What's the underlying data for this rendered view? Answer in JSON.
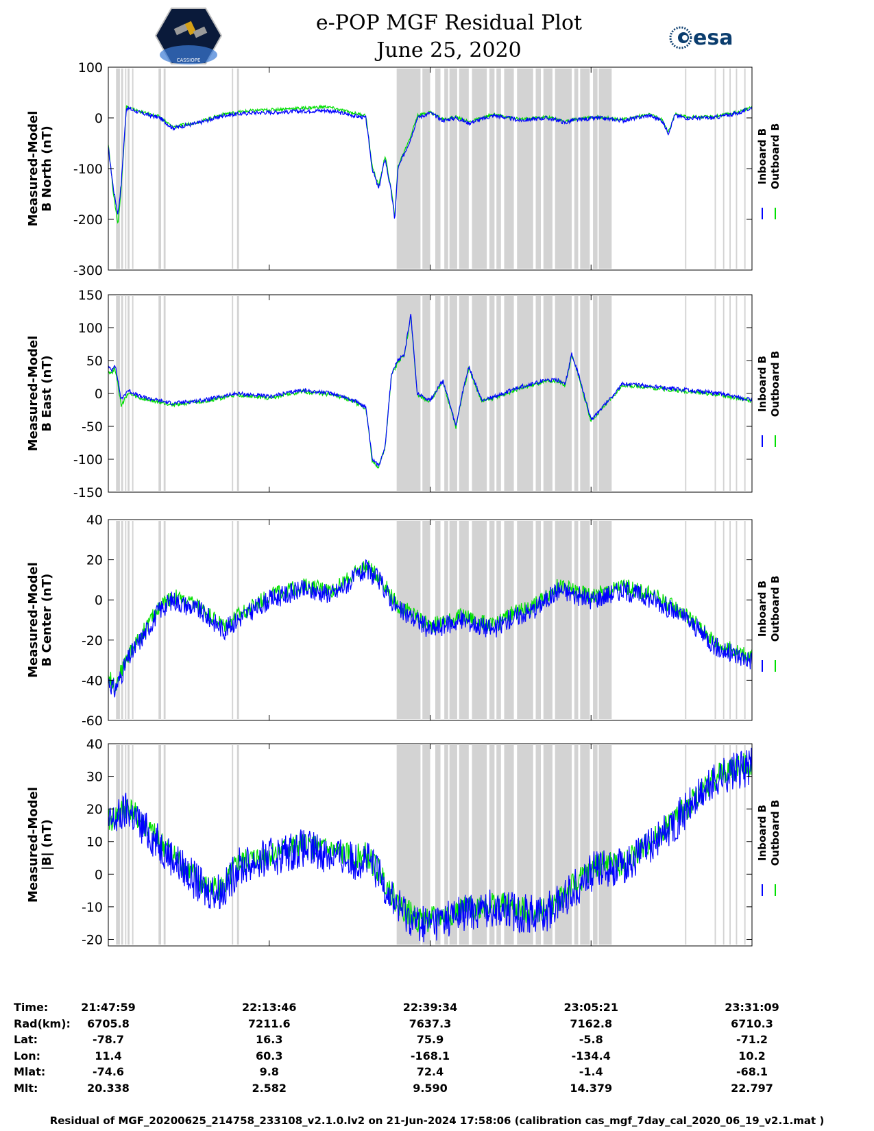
{
  "title_line1": "e-POP MGF Residual Plot",
  "title_line2": "June 25, 2020",
  "logo_right_text": "esa",
  "logo_left_text": "CASSIOPE",
  "colors": {
    "inboard": "#0000ff",
    "outboard": "#00e000",
    "shade": "#d3d3d3"
  },
  "chart_data": [
    {
      "type": "line",
      "ylabel": [
        "Measured-Model",
        "B North (nT)"
      ],
      "ylim": [
        -300,
        100
      ],
      "yticks": [
        100,
        0,
        -100,
        -200,
        -300
      ],
      "legend": [
        "Inboard B",
        "Outboard B"
      ],
      "series": [
        {
          "name": "Inboard B",
          "x": [
            0,
            0.8,
            1.5,
            2,
            2.8,
            5,
            8,
            10,
            14,
            18,
            22,
            28,
            34,
            38,
            40,
            41,
            42,
            43,
            44,
            44.5,
            45,
            46,
            47,
            48,
            50,
            52,
            54,
            56,
            60,
            64,
            68,
            70,
            71,
            72,
            76,
            80,
            84,
            86,
            87,
            88,
            90,
            94,
            98,
            100
          ],
          "y": [
            -60,
            -140,
            -190,
            -130,
            20,
            10,
            0,
            -20,
            -10,
            5,
            10,
            12,
            15,
            5,
            0,
            -100,
            -140,
            -80,
            -150,
            -200,
            -100,
            -70,
            -40,
            0,
            10,
            -5,
            0,
            -10,
            5,
            -5,
            0,
            -5,
            -10,
            -5,
            0,
            -5,
            5,
            -5,
            -30,
            5,
            0,
            0,
            10,
            20
          ],
          "noise": 4
        },
        {
          "name": "Outboard B",
          "x": [
            0,
            0.8,
            1.5,
            2,
            2.8,
            5,
            8,
            10,
            14,
            18,
            22,
            28,
            34,
            38,
            40,
            41,
            42,
            43,
            44,
            44.5,
            45,
            46,
            47,
            48,
            50,
            52,
            54,
            56,
            60,
            64,
            68,
            70,
            71,
            72,
            76,
            80,
            84,
            86,
            87,
            88,
            90,
            94,
            98,
            100
          ],
          "y": [
            -50,
            -150,
            -210,
            -140,
            22,
            12,
            2,
            -18,
            -8,
            8,
            14,
            18,
            22,
            10,
            5,
            -95,
            -135,
            -75,
            -145,
            -195,
            -95,
            -65,
            -35,
            4,
            12,
            -3,
            2,
            -8,
            7,
            -3,
            2,
            -3,
            -8,
            -3,
            2,
            -3,
            7,
            -3,
            -28,
            7,
            2,
            2,
            12,
            22
          ],
          "noise": 3
        }
      ]
    },
    {
      "type": "line",
      "ylabel": [
        "Measured-Model",
        "B East (nT)"
      ],
      "ylim": [
        -150,
        150
      ],
      "yticks": [
        150,
        100,
        50,
        0,
        -50,
        -100,
        -150
      ],
      "legend": [
        "Inboard B",
        "Outboard B"
      ],
      "series": [
        {
          "name": "Inboard B",
          "x": [
            0,
            0.5,
            1,
            1.5,
            2,
            3,
            5,
            10,
            15,
            20,
            25,
            30,
            35,
            38,
            40,
            41,
            42,
            43,
            44,
            45,
            46,
            47,
            48,
            50,
            52,
            54,
            55,
            56,
            58,
            60,
            64,
            68,
            70,
            71,
            72,
            73,
            75,
            80,
            85,
            90,
            95,
            100
          ],
          "y": [
            40,
            35,
            45,
            20,
            -10,
            5,
            -5,
            -15,
            -10,
            0,
            -5,
            5,
            0,
            -10,
            -20,
            -100,
            -110,
            -80,
            30,
            50,
            60,
            120,
            0,
            -10,
            20,
            -50,
            0,
            40,
            -10,
            -5,
            10,
            20,
            20,
            15,
            60,
            30,
            -40,
            15,
            10,
            5,
            0,
            -10
          ],
          "noise": 3
        },
        {
          "name": "Outboard B",
          "x": [
            0,
            0.5,
            1,
            1.5,
            2,
            3,
            5,
            10,
            15,
            20,
            25,
            30,
            35,
            38,
            40,
            41,
            42,
            43,
            44,
            45,
            46,
            47,
            48,
            50,
            52,
            54,
            55,
            56,
            58,
            60,
            64,
            68,
            70,
            71,
            72,
            73,
            75,
            80,
            85,
            90,
            95,
            100
          ],
          "y": [
            35,
            30,
            40,
            15,
            -20,
            0,
            -8,
            -17,
            -12,
            -2,
            -7,
            3,
            -2,
            -12,
            -22,
            -102,
            -112,
            -82,
            28,
            48,
            58,
            118,
            -2,
            -12,
            18,
            -52,
            -2,
            38,
            -12,
            -7,
            8,
            18,
            18,
            13,
            58,
            28,
            -42,
            13,
            8,
            3,
            -2,
            -12
          ],
          "noise": 3
        }
      ]
    },
    {
      "type": "line",
      "ylabel": [
        "Measured-Model",
        "B Center (nT)"
      ],
      "ylim": [
        -60,
        40
      ],
      "yticks": [
        40,
        20,
        0,
        -20,
        -40,
        -60
      ],
      "legend": [
        "Inboard B",
        "Outboard B"
      ],
      "series": [
        {
          "name": "Inboard B",
          "x": [
            0,
            1,
            3,
            5,
            8,
            10,
            14,
            18,
            20,
            25,
            30,
            35,
            38,
            40,
            42,
            45,
            48,
            50,
            55,
            60,
            62,
            66,
            70,
            75,
            80,
            85,
            90,
            95,
            100
          ],
          "y": [
            -40,
            -45,
            -30,
            -20,
            -5,
            0,
            -5,
            -15,
            -10,
            0,
            5,
            3,
            10,
            15,
            10,
            -5,
            -10,
            -15,
            -10,
            -15,
            -10,
            -5,
            5,
            0,
            5,
            0,
            -10,
            -25,
            -30
          ],
          "noise": 5
        },
        {
          "name": "Outboard B",
          "x": [
            0,
            1,
            3,
            5,
            8,
            10,
            14,
            18,
            20,
            25,
            30,
            35,
            38,
            40,
            42,
            45,
            48,
            50,
            55,
            60,
            62,
            66,
            70,
            75,
            80,
            85,
            90,
            95,
            100
          ],
          "y": [
            -38,
            -43,
            -28,
            -18,
            -3,
            2,
            -3,
            -13,
            -8,
            2,
            7,
            5,
            12,
            17,
            12,
            -3,
            -8,
            -13,
            -8,
            -13,
            -8,
            -3,
            7,
            2,
            7,
            2,
            -8,
            -23,
            -28
          ],
          "noise": 4
        }
      ]
    },
    {
      "type": "line",
      "ylabel": [
        "Measured-Model",
        "|B| (nT)"
      ],
      "ylim": [
        -22,
        40
      ],
      "yticks": [
        40,
        30,
        20,
        10,
        0,
        -10,
        -20
      ],
      "legend": [
        "Inboard B",
        "Outboard B"
      ],
      "series": [
        {
          "name": "Inboard B",
          "x": [
            0,
            2,
            3,
            5,
            10,
            15,
            18,
            20,
            25,
            30,
            35,
            38,
            40,
            42,
            45,
            48,
            50,
            55,
            60,
            64,
            68,
            72,
            76,
            80,
            85,
            90,
            95,
            100
          ],
          "y": [
            15,
            18,
            20,
            15,
            5,
            -5,
            -5,
            2,
            5,
            8,
            6,
            4,
            5,
            0,
            -10,
            -15,
            -15,
            -12,
            -10,
            -12,
            -12,
            -5,
            2,
            2,
            10,
            20,
            30,
            33
          ],
          "noise": 6
        },
        {
          "name": "Outboard B",
          "x": [
            0,
            2,
            3,
            5,
            10,
            15,
            18,
            20,
            25,
            30,
            35,
            38,
            40,
            42,
            45,
            48,
            50,
            55,
            60,
            64,
            68,
            72,
            76,
            80,
            85,
            90,
            95,
            100
          ],
          "y": [
            16,
            19,
            21,
            16,
            6,
            -4,
            -4,
            3,
            6,
            9,
            7,
            5,
            6,
            1,
            -9,
            -14,
            -14,
            -11,
            -9,
            -11,
            -11,
            -4,
            3,
            3,
            11,
            21,
            31,
            34
          ],
          "noise": 4
        }
      ]
    }
  ],
  "shaded_intervals_pct": [
    [
      1.2,
      1.8
    ],
    [
      2.0,
      2.3
    ],
    [
      2.6,
      2.8
    ],
    [
      3.0,
      3.3
    ],
    [
      3.7,
      3.9
    ],
    [
      7.8,
      8.2
    ],
    [
      8.6,
      8.9
    ],
    [
      19.2,
      19.4
    ],
    [
      20.0,
      20.3
    ],
    [
      44.8,
      48.5
    ],
    [
      48.8,
      50.0
    ],
    [
      50.8,
      51.6
    ],
    [
      52.2,
      52.8
    ],
    [
      53.0,
      54.2
    ],
    [
      54.5,
      56.0
    ],
    [
      56.5,
      58.8
    ],
    [
      59.2,
      60.0
    ],
    [
      60.3,
      61.0
    ],
    [
      61.5,
      63.0
    ],
    [
      63.5,
      66.0
    ],
    [
      66.4,
      67.2
    ],
    [
      67.6,
      69.0
    ],
    [
      69.4,
      72.0
    ],
    [
      72.4,
      73.0
    ],
    [
      73.3,
      74.8
    ],
    [
      75.3,
      76.0
    ],
    [
      76.2,
      78.2
    ],
    [
      89.6,
      89.8
    ],
    [
      94.2,
      94.4
    ],
    [
      95.5,
      95.7
    ],
    [
      96.5,
      96.7
    ],
    [
      97.5,
      97.7
    ],
    [
      98.8,
      99.0
    ]
  ],
  "x_ticks_pct": [
    0,
    25,
    50,
    75,
    100
  ],
  "footer": {
    "labels": [
      "Time:",
      "Rad(km):",
      "Lat:",
      "Lon:",
      "Mlat:",
      "Mlt:"
    ],
    "columns": [
      [
        "21:47:59",
        "6705.8",
        "-78.7",
        "11.4",
        "-74.6",
        "20.338"
      ],
      [
        "22:13:46",
        "7211.6",
        "16.3",
        "60.3",
        "9.8",
        "2.582"
      ],
      [
        "22:39:34",
        "7637.3",
        "75.9",
        "-168.1",
        "72.4",
        "9.590"
      ],
      [
        "23:05:21",
        "7162.8",
        "-5.8",
        "-134.4",
        "-1.4",
        "14.379"
      ],
      [
        "23:31:09",
        "6710.3",
        "-71.2",
        "10.2",
        "-68.1",
        "22.797"
      ]
    ]
  },
  "caption": "Residual of MGF_20200625_214758_233108_v2.1.0.lv2 on 21-Jun-2024 17:58:06 (calibration cas_mgf_7day_cal_2020_06_19_v2.1.mat )"
}
